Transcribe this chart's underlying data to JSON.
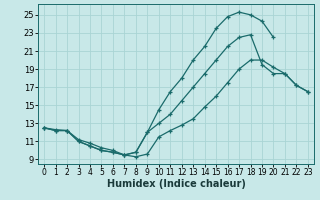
{
  "xlabel": "Humidex (Indice chaleur)",
  "xlim": [
    -0.5,
    23.5
  ],
  "ylim": [
    8.5,
    26.2
  ],
  "xticks": [
    0,
    1,
    2,
    3,
    4,
    5,
    6,
    7,
    8,
    9,
    10,
    11,
    12,
    13,
    14,
    15,
    16,
    17,
    18,
    19,
    20,
    21,
    22,
    23
  ],
  "yticks": [
    9,
    11,
    13,
    15,
    17,
    19,
    21,
    23,
    25
  ],
  "bg_color": "#c8e8e8",
  "line_color": "#1a6b6b",
  "grid_color": "#aad4d4",
  "curve1_x": [
    0,
    1,
    2,
    3,
    4,
    5,
    6,
    7,
    8,
    9,
    10,
    11,
    12,
    13,
    14,
    15,
    16,
    17,
    18,
    19,
    20,
    21,
    22,
    23
  ],
  "curve1_y": [
    12.5,
    12.3,
    12.2,
    11.2,
    10.8,
    10.3,
    10.0,
    9.5,
    9.3,
    9.6,
    11.5,
    12.2,
    12.8,
    13.5,
    14.8,
    16.0,
    17.5,
    19.0,
    20.0,
    20.0,
    19.2,
    18.5,
    17.2,
    16.5
  ],
  "curve2_x": [
    0,
    1,
    2,
    3,
    4,
    5,
    6,
    7,
    8,
    9,
    10,
    11,
    12,
    13,
    14,
    15,
    16,
    17,
    18,
    19,
    20
  ],
  "curve2_y": [
    12.5,
    12.2,
    12.2,
    11.0,
    10.5,
    10.0,
    9.8,
    9.5,
    9.8,
    12.0,
    14.5,
    16.5,
    18.0,
    20.0,
    21.5,
    23.5,
    24.8,
    25.3,
    25.0,
    24.3,
    22.5
  ],
  "curve3_x": [
    0,
    1,
    2,
    3,
    4,
    5,
    6,
    7,
    8,
    9,
    10,
    11,
    12,
    13,
    14,
    15,
    16,
    17,
    18,
    19,
    20,
    21,
    22,
    23
  ],
  "curve3_y": [
    12.5,
    12.2,
    12.2,
    11.0,
    10.5,
    10.0,
    9.8,
    9.5,
    9.8,
    12.0,
    13.0,
    14.0,
    15.5,
    17.0,
    18.5,
    20.0,
    21.5,
    22.5,
    22.8,
    19.5,
    18.5,
    18.5,
    17.2,
    16.5
  ]
}
